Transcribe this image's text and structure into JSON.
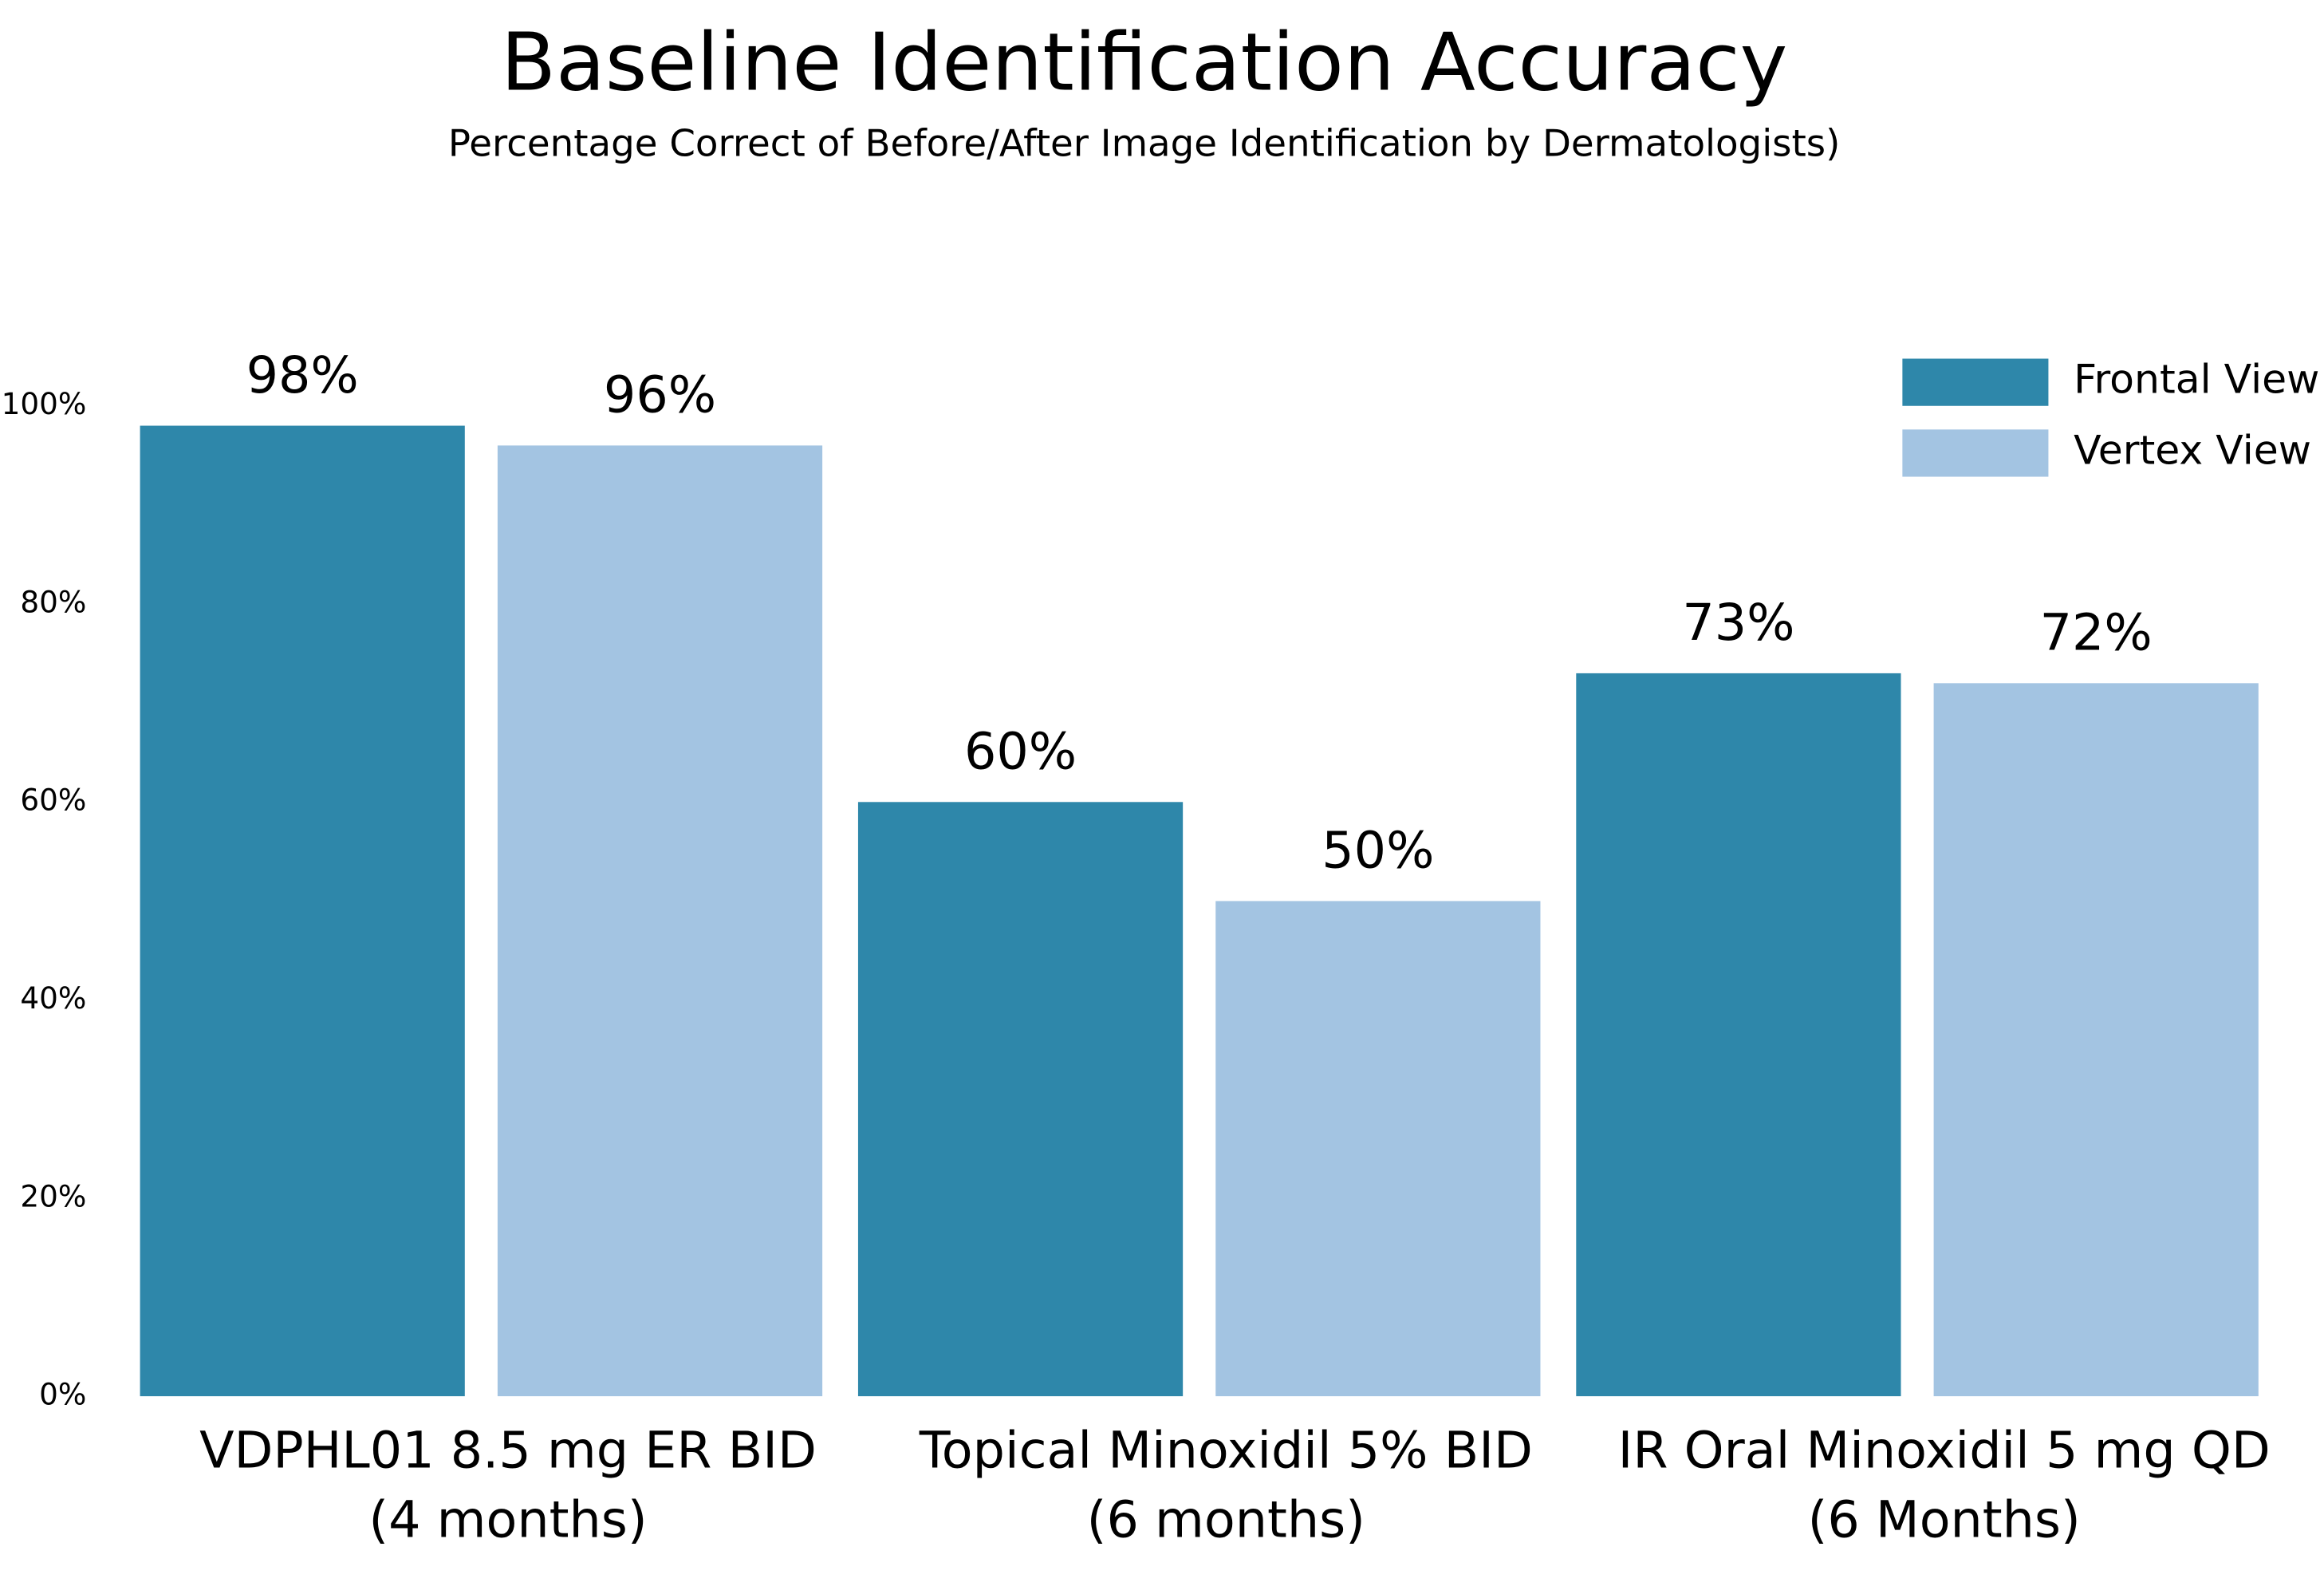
{
  "chart_data": {
    "type": "bar",
    "title": "Baseline Identification Accuracy",
    "subtitle": "Percentage Correct of Before/After Image Identification by Dermatologists)",
    "categories": [
      [
        "VDPHL01 8.5 mg ER BID",
        "(4 months)"
      ],
      [
        "Topical Minoxidil 5% BID",
        "(6 months)"
      ],
      [
        "IR Oral Minoxidil 5 mg QD",
        "(6 Months)"
      ]
    ],
    "series": [
      {
        "name": "Frontal View",
        "color": "#2e87aa",
        "values": [
          98,
          60,
          73
        ],
        "value_labels": [
          "98%",
          "60%",
          "73%"
        ]
      },
      {
        "name": "Vertex View",
        "color": "#a3c4e2",
        "values": [
          96,
          50,
          72
        ],
        "value_labels": [
          "96%",
          "50%",
          "72%"
        ]
      }
    ],
    "ylim": [
      0,
      100
    ],
    "yticks": [
      {
        "value": 0,
        "label": "0%"
      },
      {
        "value": 20,
        "label": "20%"
      },
      {
        "value": 40,
        "label": "40%"
      },
      {
        "value": 60,
        "label": "60%"
      },
      {
        "value": 80,
        "label": "80%"
      },
      {
        "value": 100,
        "label": "100%"
      }
    ],
    "grid": false,
    "legend": "top-right"
  }
}
